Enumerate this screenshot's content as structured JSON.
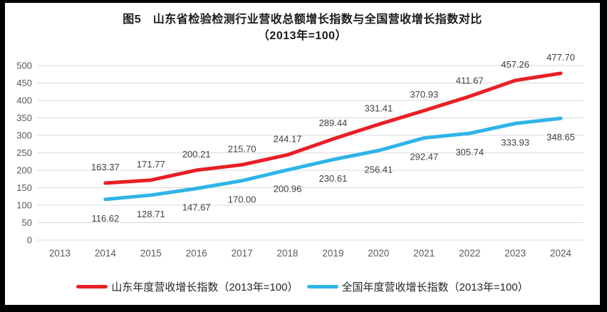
{
  "chart_data": {
    "type": "line",
    "title": "图5　山东省检验检测行业营收总额增长指数与全国营收增长指数对比",
    "subtitle": "（2013年=100）",
    "categories": [
      "2013",
      "2014",
      "2015",
      "2016",
      "2017",
      "2018",
      "2019",
      "2020",
      "2021",
      "2022",
      "2023",
      "2024"
    ],
    "series": [
      {
        "name": "山东年度营收增长指数（2013年=100）",
        "color": "#e81f25",
        "label_position": "above",
        "values": [
          null,
          163.37,
          171.77,
          200.21,
          215.7,
          244.17,
          289.44,
          331.41,
          370.93,
          411.67,
          457.26,
          477.7
        ]
      },
      {
        "name": "全国年度营收增长指数（2013年=100）",
        "color": "#2fb4e8",
        "label_position": "below",
        "values": [
          null,
          116.62,
          128.71,
          147.67,
          170.0,
          200.96,
          230.61,
          256.41,
          292.47,
          305.74,
          333.93,
          348.65
        ]
      }
    ],
    "ylim": [
      0,
      500
    ],
    "yticks": [
      0,
      50,
      100,
      150,
      200,
      250,
      300,
      350,
      400,
      450,
      500
    ],
    "grid": true,
    "legend_position": "bottom",
    "colors": {
      "grid": "#d9d9d9",
      "axis_text": "#595959",
      "data_label": "#404040"
    }
  }
}
